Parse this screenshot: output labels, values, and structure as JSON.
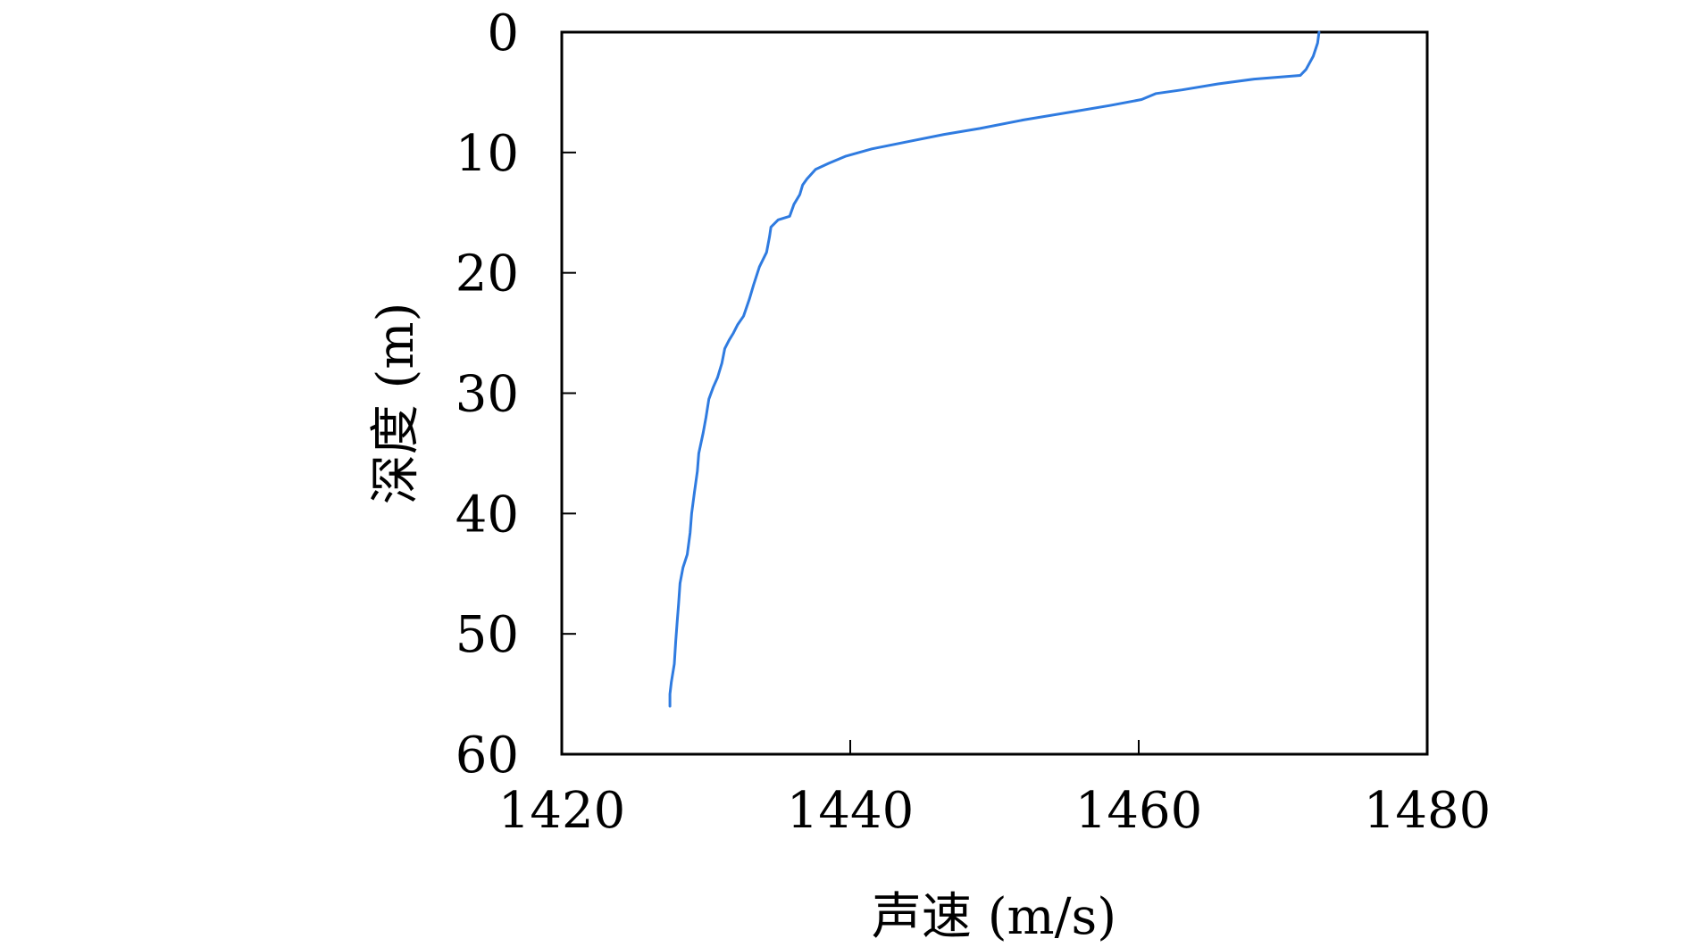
{
  "chart_data": {
    "type": "line",
    "title": "",
    "xlabel": "声速 (m/s)",
    "ylabel": "深度 (m)",
    "xlim": [
      1420,
      1480
    ],
    "ylim": [
      0,
      60
    ],
    "y_inverted": true,
    "x_ticks": [
      "1420",
      "1440",
      "1460",
      "1480"
    ],
    "y_ticks": [
      "0",
      "10",
      "20",
      "30",
      "40",
      "50",
      "60"
    ],
    "grid": false,
    "legend": "none",
    "series": [
      {
        "color": "#2f7be0",
        "points": [
          [
            1472.5,
            0.0
          ],
          [
            1472.4,
            0.9
          ],
          [
            1472.1,
            2.0
          ],
          [
            1471.6,
            3.1
          ],
          [
            1471.2,
            3.6
          ],
          [
            1468.0,
            3.9
          ],
          [
            1465.5,
            4.3
          ],
          [
            1463.0,
            4.8
          ],
          [
            1461.2,
            5.1
          ],
          [
            1460.2,
            5.6
          ],
          [
            1458.0,
            6.1
          ],
          [
            1455.5,
            6.6
          ],
          [
            1452.0,
            7.3
          ],
          [
            1449.0,
            8.0
          ],
          [
            1446.5,
            8.5
          ],
          [
            1444.0,
            9.1
          ],
          [
            1441.5,
            9.7
          ],
          [
            1439.7,
            10.3
          ],
          [
            1438.5,
            10.9
          ],
          [
            1437.6,
            11.4
          ],
          [
            1437.0,
            12.2
          ],
          [
            1436.7,
            12.7
          ],
          [
            1436.5,
            13.5
          ],
          [
            1436.1,
            14.3
          ],
          [
            1435.8,
            15.3
          ],
          [
            1435.0,
            15.6
          ],
          [
            1434.5,
            16.2
          ],
          [
            1434.4,
            17.0
          ],
          [
            1434.2,
            18.3
          ],
          [
            1433.7,
            19.5
          ],
          [
            1433.3,
            21.0
          ],
          [
            1433.0,
            22.2
          ],
          [
            1432.6,
            23.6
          ],
          [
            1432.2,
            24.3
          ],
          [
            1431.9,
            25.0
          ],
          [
            1431.6,
            25.6
          ],
          [
            1431.3,
            26.3
          ],
          [
            1431.1,
            27.5
          ],
          [
            1430.8,
            28.7
          ],
          [
            1430.5,
            29.5
          ],
          [
            1430.2,
            30.5
          ],
          [
            1430.0,
            32.0
          ],
          [
            1429.8,
            33.3
          ],
          [
            1429.5,
            35.0
          ],
          [
            1429.4,
            36.5
          ],
          [
            1429.2,
            38.2
          ],
          [
            1429.0,
            40.0
          ],
          [
            1428.9,
            41.6
          ],
          [
            1428.7,
            43.4
          ],
          [
            1428.4,
            44.5
          ],
          [
            1428.2,
            45.8
          ],
          [
            1428.1,
            47.5
          ],
          [
            1428.0,
            49.0
          ],
          [
            1427.9,
            50.6
          ],
          [
            1427.8,
            52.5
          ],
          [
            1427.6,
            54.0
          ],
          [
            1427.5,
            55.0
          ],
          [
            1427.5,
            56.0
          ]
        ]
      }
    ]
  }
}
